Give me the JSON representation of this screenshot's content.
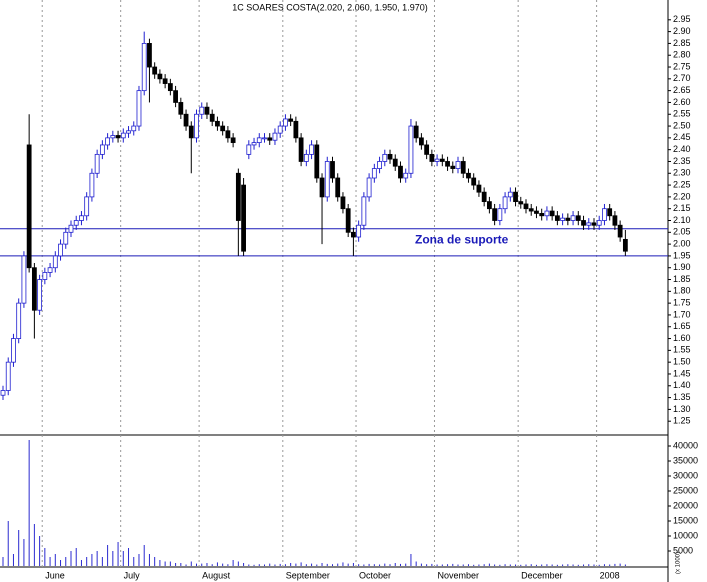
{
  "chart_data": {
    "type": "candlestick",
    "title": "1C SOARES COSTA(2.020, 2.060, 1.950, 1.970)",
    "categories": [
      null,
      null,
      null,
      null,
      null,
      null,
      null,
      null,
      "June",
      null,
      null,
      null,
      null,
      null,
      null,
      null,
      null,
      null,
      null,
      null,
      null,
      null,
      null,
      "July",
      null,
      null,
      null,
      null,
      null,
      null,
      null,
      null,
      null,
      null,
      null,
      null,
      null,
      null,
      "August",
      null,
      null,
      null,
      null,
      null,
      null,
      null,
      null,
      null,
      null,
      null,
      null,
      null,
      null,
      null,
      "September",
      null,
      null,
      null,
      null,
      null,
      null,
      null,
      null,
      null,
      null,
      null,
      null,
      null,
      "October",
      null,
      null,
      null,
      null,
      null,
      null,
      null,
      null,
      null,
      null,
      null,
      null,
      null,
      null,
      "November",
      null,
      null,
      null,
      null,
      null,
      null,
      null,
      null,
      null,
      null,
      null,
      null,
      null,
      null,
      null,
      "December",
      null,
      null,
      null,
      null,
      null,
      null,
      null,
      null,
      null,
      null,
      null,
      null,
      null,
      null,
      "2008",
      null,
      null,
      null,
      null,
      null
    ],
    "open": [
      1.36,
      1.38,
      1.5,
      1.6,
      1.75,
      2.42,
      1.9,
      1.72,
      1.85,
      1.88,
      1.9,
      1.95,
      2.0,
      2.05,
      2.08,
      2.1,
      2.12,
      2.2,
      2.3,
      2.38,
      2.42,
      2.45,
      2.46,
      2.45,
      2.47,
      2.48,
      2.5,
      2.65,
      2.85,
      2.75,
      2.72,
      2.7,
      2.68,
      2.65,
      2.6,
      2.55,
      2.5,
      2.45,
      2.55,
      2.58,
      2.55,
      2.52,
      2.5,
      2.48,
      2.45,
      2.3,
      2.25,
      2.38,
      2.42,
      2.43,
      2.45,
      2.45,
      2.44,
      2.47,
      2.5,
      2.53,
      2.52,
      2.45,
      2.35,
      2.38,
      2.42,
      2.28,
      2.2,
      2.35,
      2.28,
      2.2,
      2.15,
      2.05,
      2.03,
      2.08,
      2.2,
      2.28,
      2.32,
      2.35,
      2.38,
      2.36,
      2.33,
      2.28,
      2.3,
      2.5,
      2.45,
      2.42,
      2.38,
      2.35,
      2.36,
      2.35,
      2.33,
      2.32,
      2.35,
      2.3,
      2.28,
      2.25,
      2.22,
      2.18,
      2.15,
      2.1,
      2.15,
      2.2,
      2.22,
      2.18,
      2.17,
      2.15,
      2.14,
      2.13,
      2.12,
      2.14,
      2.12,
      2.1,
      2.11,
      2.1,
      2.12,
      2.1,
      2.08,
      2.09,
      2.08,
      2.1,
      2.15,
      2.12,
      2.08,
      2.02
    ],
    "high": [
      1.4,
      1.52,
      1.62,
      1.77,
      1.97,
      2.55,
      1.92,
      1.87,
      1.9,
      1.92,
      1.97,
      2.02,
      2.07,
      2.1,
      2.12,
      2.14,
      2.22,
      2.32,
      2.4,
      2.44,
      2.47,
      2.48,
      2.48,
      2.49,
      2.5,
      2.52,
      2.67,
      2.9,
      2.87,
      2.77,
      2.74,
      2.72,
      2.7,
      2.67,
      2.62,
      2.57,
      2.52,
      2.57,
      2.6,
      2.6,
      2.57,
      2.54,
      2.52,
      2.5,
      2.47,
      2.32,
      2.28,
      2.44,
      2.45,
      2.47,
      2.47,
      2.47,
      2.49,
      2.52,
      2.55,
      2.55,
      2.54,
      2.47,
      2.4,
      2.44,
      2.44,
      2.3,
      2.37,
      2.37,
      2.3,
      2.22,
      2.17,
      2.07,
      2.1,
      2.22,
      2.3,
      2.34,
      2.37,
      2.4,
      2.4,
      2.38,
      2.35,
      2.32,
      2.53,
      2.52,
      2.47,
      2.44,
      2.4,
      2.38,
      2.38,
      2.37,
      2.35,
      2.37,
      2.37,
      2.32,
      2.3,
      2.27,
      2.24,
      2.2,
      2.17,
      2.17,
      2.22,
      2.24,
      2.24,
      2.2,
      2.19,
      2.17,
      2.16,
      2.15,
      2.16,
      2.16,
      2.14,
      2.13,
      2.13,
      2.14,
      2.14,
      2.12,
      2.11,
      2.11,
      2.12,
      2.17,
      2.17,
      2.14,
      2.1,
      2.06
    ],
    "low": [
      1.34,
      1.36,
      1.48,
      1.58,
      1.73,
      1.88,
      1.6,
      1.7,
      1.83,
      1.86,
      1.88,
      1.93,
      1.98,
      2.03,
      2.06,
      2.08,
      2.1,
      2.18,
      2.28,
      2.36,
      2.4,
      2.43,
      2.43,
      2.43,
      2.45,
      2.46,
      2.48,
      2.63,
      2.6,
      2.7,
      2.68,
      2.66,
      2.63,
      2.58,
      2.53,
      2.48,
      2.3,
      2.43,
      2.53,
      2.53,
      2.5,
      2.48,
      2.46,
      2.43,
      2.41,
      1.95,
      1.95,
      2.36,
      2.4,
      2.41,
      2.43,
      2.42,
      2.42,
      2.45,
      2.48,
      2.5,
      2.43,
      2.33,
      2.33,
      2.36,
      2.26,
      2.0,
      2.18,
      2.26,
      2.18,
      2.13,
      2.03,
      1.95,
      2.01,
      2.06,
      2.18,
      2.26,
      2.3,
      2.33,
      2.34,
      2.31,
      2.26,
      2.26,
      2.28,
      2.43,
      2.4,
      2.36,
      2.33,
      2.33,
      2.33,
      2.31,
      2.3,
      2.3,
      2.28,
      2.26,
      2.23,
      2.2,
      2.16,
      2.13,
      2.08,
      2.08,
      2.13,
      2.18,
      2.16,
      2.15,
      2.13,
      2.12,
      2.11,
      2.1,
      2.1,
      2.1,
      2.08,
      2.08,
      2.08,
      2.08,
      2.08,
      2.06,
      2.06,
      2.06,
      2.06,
      2.08,
      2.1,
      2.06,
      2.01,
      1.95
    ],
    "close": [
      1.38,
      1.5,
      1.6,
      1.75,
      1.95,
      1.9,
      1.72,
      1.85,
      1.88,
      1.9,
      1.95,
      2.0,
      2.05,
      2.08,
      2.1,
      2.12,
      2.2,
      2.3,
      2.38,
      2.42,
      2.45,
      2.46,
      2.45,
      2.47,
      2.48,
      2.5,
      2.65,
      2.85,
      2.75,
      2.72,
      2.7,
      2.68,
      2.65,
      2.6,
      2.55,
      2.5,
      2.45,
      2.55,
      2.58,
      2.55,
      2.52,
      2.5,
      2.48,
      2.45,
      2.43,
      2.1,
      1.97,
      2.42,
      2.43,
      2.45,
      2.45,
      2.44,
      2.47,
      2.5,
      2.53,
      2.52,
      2.45,
      2.35,
      2.38,
      2.42,
      2.28,
      2.2,
      2.35,
      2.28,
      2.2,
      2.15,
      2.05,
      2.03,
      2.08,
      2.2,
      2.28,
      2.32,
      2.35,
      2.38,
      2.36,
      2.33,
      2.28,
      2.3,
      2.5,
      2.45,
      2.42,
      2.38,
      2.35,
      2.36,
      2.35,
      2.33,
      2.32,
      2.35,
      2.3,
      2.28,
      2.25,
      2.22,
      2.18,
      2.15,
      2.1,
      2.15,
      2.2,
      2.22,
      2.18,
      2.17,
      2.15,
      2.14,
      2.13,
      2.12,
      2.14,
      2.12,
      2.1,
      2.11,
      2.1,
      2.12,
      2.1,
      2.08,
      2.09,
      2.08,
      2.1,
      2.15,
      2.12,
      2.08,
      2.03,
      1.97
    ],
    "volume": [
      3000,
      15000,
      4000,
      12000,
      9000,
      42000,
      14000,
      10000,
      6000,
      3000,
      4000,
      2000,
      3000,
      5000,
      6000,
      2000,
      3000,
      4000,
      5000,
      3000,
      7000,
      5000,
      8000,
      5000,
      6000,
      3000,
      4000,
      7000,
      4000,
      3000,
      2000,
      1500,
      1500,
      1000,
      1000,
      500,
      1500,
      800,
      800,
      1000,
      600,
      1200,
      800,
      600,
      2000,
      1500,
      1000,
      500,
      400,
      600,
      500,
      800,
      500,
      700,
      600,
      1000,
      800,
      1200,
      600,
      800,
      500,
      1000,
      700,
      600,
      800,
      1200,
      800,
      1000,
      600,
      500,
      700,
      600,
      500,
      800,
      600,
      1000,
      700,
      800,
      4000,
      1500,
      800,
      600,
      700,
      500,
      500,
      600,
      700,
      500,
      500,
      600,
      400,
      500,
      600,
      800,
      500,
      400,
      600,
      500,
      500,
      400,
      500,
      600,
      400,
      500,
      600,
      500,
      400,
      500,
      600,
      500,
      400,
      500,
      600,
      500,
      400,
      600,
      500,
      700,
      800,
      500
    ],
    "ylim": [
      1.2,
      3.0
    ],
    "yticks": [
      1.25,
      {
        "value": 1.3,
        "label": "1.30"
      },
      1.35,
      {
        "value": 1.4,
        "label": "1.40"
      },
      1.45,
      {
        "value": 1.5,
        "label": "1.50"
      },
      1.55,
      {
        "value": 1.6,
        "label": "1.60"
      },
      1.65,
      {
        "value": 1.7,
        "label": "1.70"
      },
      1.75,
      {
        "value": 1.8,
        "label": "1.80"
      },
      1.85,
      {
        "value": 1.9,
        "label": "1.90"
      },
      1.95,
      {
        "value": 2.0,
        "label": "2.00"
      },
      2.05,
      {
        "value": 2.1,
        "label": "2.10"
      },
      2.15,
      {
        "value": 2.2,
        "label": "2.20"
      },
      2.25,
      {
        "value": 2.3,
        "label": "2.30"
      },
      2.35,
      {
        "value": 2.4,
        "label": "2.40"
      },
      2.45,
      {
        "value": 2.5,
        "label": "2.50"
      },
      2.55,
      {
        "value": 2.6,
        "label": "2.60"
      },
      2.65,
      {
        "value": 2.7,
        "label": "2.70"
      },
      2.75,
      {
        "value": 2.8,
        "label": "2.80"
      },
      2.85,
      {
        "value": 2.9,
        "label": "2.90"
      },
      2.95
    ],
    "volume_ylim": [
      0,
      42000
    ],
    "volume_yticks": [
      5000,
      10000,
      15000,
      20000,
      25000,
      30000,
      35000,
      40000
    ],
    "volume_label": "(x 1000)",
    "hlines": [
      2.065,
      1.95
    ],
    "annotation": "Zona de suporte",
    "up_color": "#2020d0",
    "down_color": "#000000",
    "line_color": "#1a1ab8",
    "volume_color": "#2a2ad0"
  }
}
